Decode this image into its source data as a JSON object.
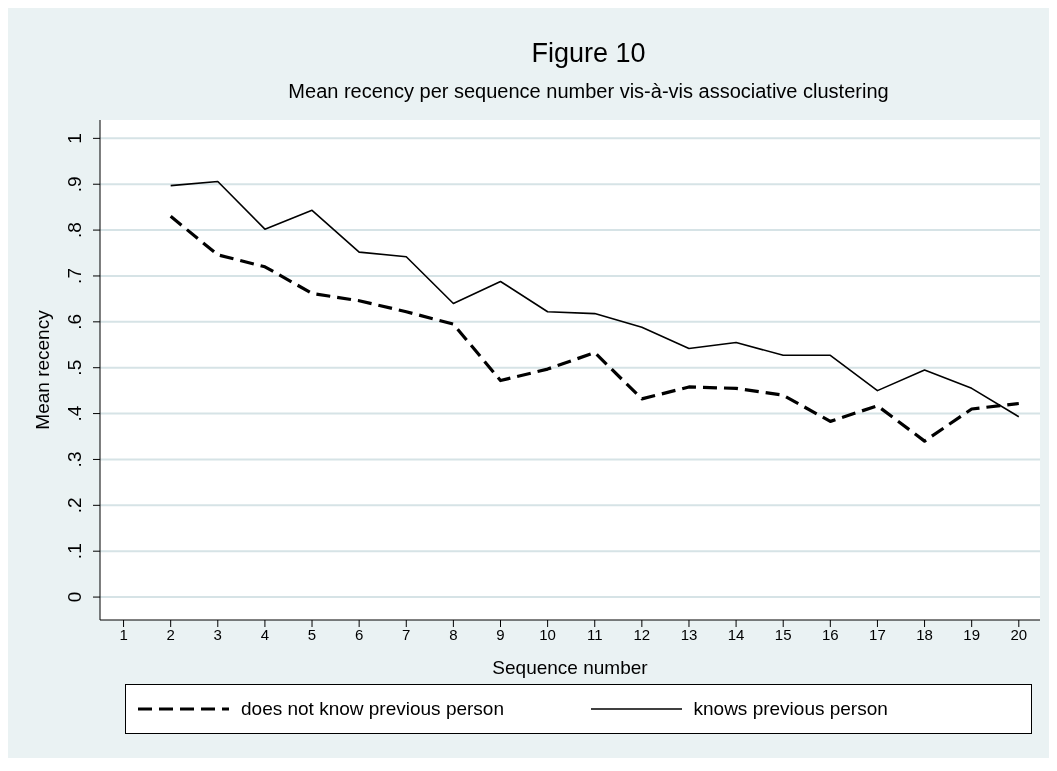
{
  "chart_data": {
    "type": "line",
    "title": "Figure 10",
    "subtitle": "Mean recency per sequence number vis-à-vis associative clustering",
    "xlabel": "Sequence number",
    "ylabel": "Mean recency",
    "x": [
      2,
      3,
      4,
      5,
      6,
      7,
      8,
      9,
      10,
      11,
      12,
      13,
      14,
      15,
      16,
      17,
      18,
      19,
      20
    ],
    "series": [
      {
        "name": "does not know previous person",
        "color": "#000000",
        "line_style": "dashed",
        "values": [
          0.83,
          0.746,
          0.72,
          0.662,
          0.646,
          0.622,
          0.595,
          0.472,
          0.497,
          0.533,
          0.432,
          0.458,
          0.455,
          0.44,
          0.383,
          0.417,
          0.34,
          0.41,
          0.422
        ]
      },
      {
        "name": "knows previous person",
        "color": "#000000",
        "line_style": "solid",
        "values": [
          0.897,
          0.906,
          0.802,
          0.843,
          0.752,
          0.742,
          0.64,
          0.688,
          0.622,
          0.618,
          0.588,
          0.542,
          0.555,
          0.527,
          0.527,
          0.45,
          0.495,
          0.455,
          0.393
        ]
      }
    ],
    "xlim": [
      0.5,
      20.45
    ],
    "xticks": [
      1,
      2,
      3,
      4,
      5,
      6,
      7,
      8,
      9,
      10,
      11,
      12,
      13,
      14,
      15,
      16,
      17,
      18,
      19,
      20
    ],
    "ylim": [
      -0.05,
      1.04
    ],
    "yticks": [
      0,
      {
        "value": 0.1,
        "label": ".1"
      },
      {
        "value": 0.2,
        "label": ".2"
      },
      {
        "value": 0.3,
        "label": ".3"
      },
      {
        "value": 0.4,
        "label": ".4"
      },
      {
        "value": 0.5,
        "label": ".5"
      },
      {
        "value": 0.6,
        "label": ".6"
      },
      {
        "value": 0.7,
        "label": ".7"
      },
      {
        "value": 0.8,
        "label": ".8"
      },
      {
        "value": 0.9,
        "label": ".9"
      },
      1
    ],
    "grid": "y",
    "legend": "bottom",
    "marker": "none"
  }
}
